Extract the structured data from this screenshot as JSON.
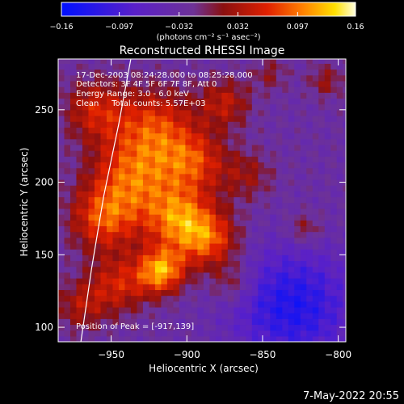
{
  "chart_data": {
    "type": "heatmap",
    "title": "Reconstructed RHESSI Image",
    "xlabel": "Heliocentric X (arcsec)",
    "ylabel": "Heliocentric Y (arcsec)",
    "xlim": [
      -985,
      -795
    ],
    "ylim": [
      90,
      285
    ],
    "x_ticks": [
      {
        "value": -950,
        "label": "−950"
      },
      {
        "value": -900,
        "label": "−900"
      },
      {
        "value": -850,
        "label": "−850"
      },
      {
        "value": -800,
        "label": "−800"
      }
    ],
    "y_ticks": [
      {
        "value": 100,
        "label": "100"
      },
      {
        "value": 150,
        "label": "150"
      },
      {
        "value": 200,
        "label": "200"
      },
      {
        "value": 250,
        "label": "250"
      }
    ],
    "colorbar": {
      "min": -0.16,
      "max": 0.16,
      "ticks": [
        {
          "value": -0.16,
          "label": "−0.16"
        },
        {
          "value": -0.097,
          "label": "−0.097"
        },
        {
          "value": -0.032,
          "label": "−0.032"
        },
        {
          "value": 0.032,
          "label": "0.032"
        },
        {
          "value": 0.097,
          "label": "0.097"
        },
        {
          "value": 0.16,
          "label": "0.16"
        }
      ],
      "unit_label": "(photons cm⁻² s⁻¹ asec⁻²)"
    },
    "annotations": {
      "time_range": "17-Dec-2003 08:24:28.000 to 08:25:28.000",
      "detectors": "Detectors: 3F 4F 5F 6F 7F 8F, Att 0",
      "energy_range": "Energy Range: 3.0 - 6.0 keV",
      "method_counts": "Clean     Total counts: 5.57E+03",
      "peak_position": "Position of Peak = [-917,139]"
    },
    "limb_curve": [
      {
        "x": -970,
        "y": 90
      },
      {
        "x": -963,
        "y": 140
      },
      {
        "x": -955,
        "y": 190
      },
      {
        "x": -945,
        "y": 240
      },
      {
        "x": -937,
        "y": 285
      }
    ],
    "intensity_blobs": [
      {
        "x": -917,
        "y": 139,
        "sigma": 11,
        "amp": 0.14
      },
      {
        "x": -905,
        "y": 175,
        "sigma": 16,
        "amp": 0.12
      },
      {
        "x": -935,
        "y": 205,
        "sigma": 20,
        "amp": 0.11
      },
      {
        "x": -955,
        "y": 175,
        "sigma": 16,
        "amp": 0.1
      },
      {
        "x": -885,
        "y": 160,
        "sigma": 14,
        "amp": 0.1
      },
      {
        "x": -920,
        "y": 240,
        "sigma": 18,
        "amp": 0.09
      },
      {
        "x": -960,
        "y": 250,
        "sigma": 15,
        "amp": 0.08
      },
      {
        "x": -895,
        "y": 215,
        "sigma": 15,
        "amp": 0.09
      },
      {
        "x": -945,
        "y": 130,
        "sigma": 14,
        "amp": 0.08
      },
      {
        "x": -970,
        "y": 115,
        "sigma": 12,
        "amp": 0.06
      },
      {
        "x": -875,
        "y": 255,
        "sigma": 12,
        "amp": 0.07
      },
      {
        "x": -860,
        "y": 205,
        "sigma": 12,
        "amp": 0.05
      },
      {
        "x": -870,
        "y": 130,
        "sigma": 10,
        "amp": 0.05
      },
      {
        "x": -822,
        "y": 168,
        "sigma": 8,
        "amp": 0.05
      },
      {
        "x": -808,
        "y": 270,
        "sigma": 8,
        "amp": 0.05
      },
      {
        "x": -845,
        "y": 275,
        "sigma": 8,
        "amp": 0.04
      }
    ],
    "background_level": -0.03,
    "dark_region": {
      "x": -830,
      "y": 115,
      "sigma": 28,
      "amp": -0.1
    },
    "cell_size_arcsec": 4,
    "colormap": {
      "stops": [
        {
          "value": 0.0,
          "color": "#0010ff"
        },
        {
          "value": 0.25,
          "color": "#5a20c8"
        },
        {
          "value": 0.45,
          "color": "#6e3296"
        },
        {
          "value": 0.55,
          "color": "#8a1010"
        },
        {
          "value": 0.7,
          "color": "#e02000"
        },
        {
          "value": 0.82,
          "color": "#ff8000"
        },
        {
          "value": 0.93,
          "color": "#ffe000"
        },
        {
          "value": 1.0,
          "color": "#ffffe0"
        }
      ]
    }
  },
  "date_stamp": "7-May-2022 20:55"
}
